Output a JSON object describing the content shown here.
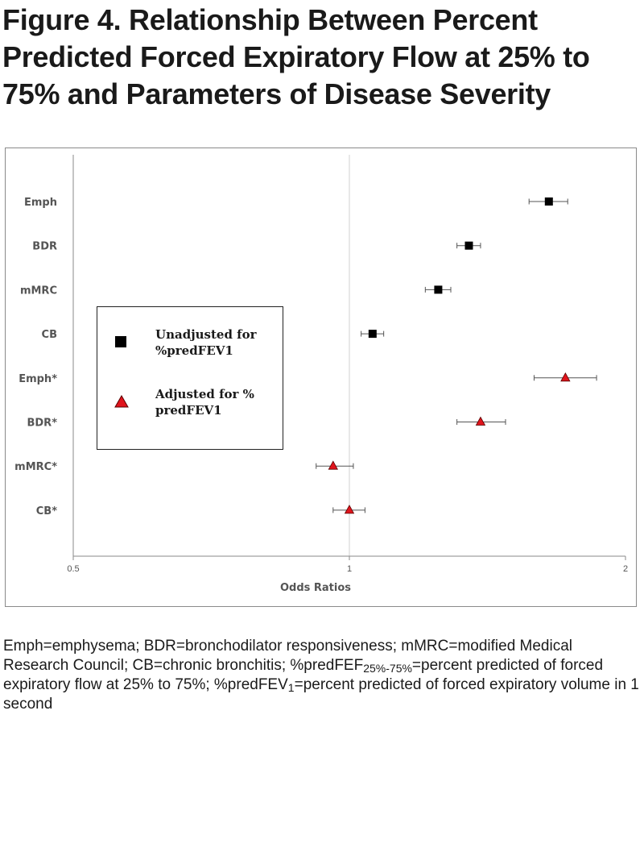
{
  "title": "Figure 4. Relationship Between Percent Predicted Forced Expiratory Flow at 25% to 75% and Parameters of Disease Severity",
  "chart_data": {
    "type": "scatter",
    "subtype": "forest-plot",
    "xlabel": "Odds Ratios",
    "ylabel": "",
    "xlim": [
      0.5,
      2
    ],
    "x_ticks": [
      0.5,
      1,
      2
    ],
    "x_tick_labels": [
      "0.5",
      "1",
      "2"
    ],
    "x_scale": "log",
    "reference_line": 1,
    "categories": [
      "Emph",
      "BDR",
      "mMRC",
      "CB",
      "Emph*",
      "BDR*",
      "mMRC*",
      "CB*"
    ],
    "series": [
      {
        "name": "Unadjusted for %predFEV1",
        "marker": "square",
        "color": "#000000",
        "points": [
          {
            "category": "Emph",
            "or": 1.65,
            "lower": 1.57,
            "upper": 1.73
          },
          {
            "category": "BDR",
            "or": 1.35,
            "lower": 1.31,
            "upper": 1.39
          },
          {
            "category": "mMRC",
            "or": 1.25,
            "lower": 1.21,
            "upper": 1.29
          },
          {
            "category": "CB",
            "or": 1.06,
            "lower": 1.03,
            "upper": 1.09
          }
        ]
      },
      {
        "name": "Adjusted for % predFEV1",
        "marker": "triangle",
        "color": "#e0141c",
        "points": [
          {
            "category": "Emph*",
            "or": 1.72,
            "lower": 1.59,
            "upper": 1.86
          },
          {
            "category": "BDR*",
            "or": 1.39,
            "lower": 1.31,
            "upper": 1.48
          },
          {
            "category": "mMRC*",
            "or": 0.96,
            "lower": 0.92,
            "upper": 1.01
          },
          {
            "category": "CB*",
            "or": 1.0,
            "lower": 0.96,
            "upper": 1.04
          }
        ]
      }
    ],
    "legend_position": "left",
    "grid": false
  },
  "legend": {
    "unadjusted_line1": "Unadjusted for",
    "unadjusted_line2": "%predFEV1",
    "adjusted_line1": "Adjusted for %",
    "adjusted_line2": "predFEV1"
  },
  "footnote": {
    "part1": "Emph=emphysema; BDR=bronchodilator responsiveness; mMRC=modified Medical Research Council; CB=chronic bronchitis; %predFEF",
    "sub1": "25%-75%",
    "part2": "=percent predicted of forced expiratory flow at 25% to 75%; %predFEV",
    "sub2": "1",
    "part3": "=percent predicted of forced expiratory volume in 1 second"
  },
  "colors": {
    "unadjusted": "#000000",
    "adjusted": "#e0141c",
    "axis": "#8a8a8a",
    "reference": "#d0d0d0",
    "label": "#555555"
  }
}
